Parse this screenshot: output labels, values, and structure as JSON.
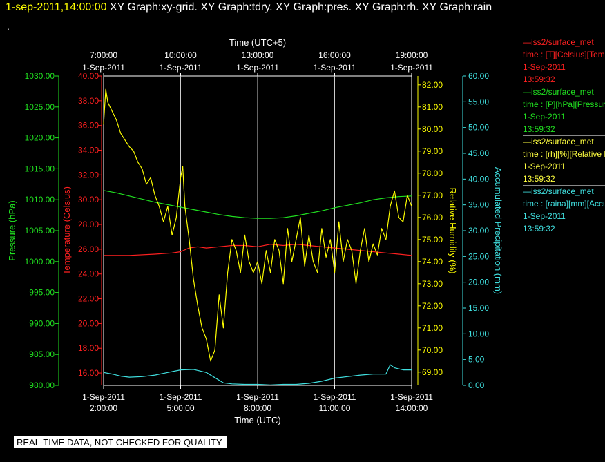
{
  "header": {
    "timestamp": "1-sep-2011,14:00:00",
    "title_rest": "  XY Graph:xy-grid.  XY Graph:tdry.  XY Graph:pres.  XY Graph:rh.  XY Graph:rain",
    "dot": "."
  },
  "footer": {
    "quality_label": "REAL-TIME DATA, NOT CHECKED FOR QUALITY"
  },
  "legend": [
    {
      "line1": "—iss2/surface_met",
      "line2": "time : [T][Celsius][Temperature]",
      "line3": "1-Sep-2011",
      "line4": "13:59:32",
      "color": "#ff2020"
    },
    {
      "line1": "—iss2/surface_met",
      "line2": "time : [P][hPa][Pressure]",
      "line3": "1-Sep-2011",
      "line4": "13:59:32",
      "color": "#20e020"
    },
    {
      "line1": "—iss2/surface_met",
      "line2": "time : [rh][%][Relative Humidity]",
      "line3": "1-Sep-2011",
      "line4": "13:59:32",
      "color": "#ffff40"
    },
    {
      "line1": "—iss2/surface_met",
      "line2": "time : [raina][mm][Accumulated Precipitation]",
      "line3": "1-Sep-2011",
      "line4": "13:59:32",
      "color": "#40e0e0"
    }
  ],
  "chart_data": {
    "type": "line",
    "grid": "vertical lines only",
    "x_top": {
      "title": "Time (UTC+5)",
      "ticks": [
        {
          "time": "7:00:00",
          "date": "1-Sep-2011"
        },
        {
          "time": "10:00:00",
          "date": "1-Sep-2011"
        },
        {
          "time": "13:00:00",
          "date": "1-Sep-2011"
        },
        {
          "time": "16:00:00",
          "date": "1-Sep-2011"
        },
        {
          "time": "19:00:00",
          "date": "1-Sep-2011"
        }
      ]
    },
    "x_bottom": {
      "title": "Time (UTC)",
      "range": [
        "2:00:00",
        "14:00:00"
      ],
      "ticks": [
        {
          "date": "1-Sep-2011",
          "time": "2:00:00"
        },
        {
          "date": "1-Sep-2011",
          "time": "5:00:00"
        },
        {
          "date": "1-Sep-2011",
          "time": "8:00:00"
        },
        {
          "date": "1-Sep-2011",
          "time": "11:00:00"
        },
        {
          "date": "1-Sep-2011",
          "time": "14:00:00"
        }
      ]
    },
    "axes": {
      "pressure": {
        "label": "Pressure (hPa)",
        "color": "#20e020",
        "range": [
          980,
          1030
        ],
        "ticks": [
          "980.00",
          "985.00",
          "990.00",
          "995.00",
          "1000.00",
          "1005.00",
          "1010.00",
          "1015.00",
          "1020.00",
          "1025.00",
          "1030.00"
        ]
      },
      "temperature": {
        "label": "Temperature (Celsius)",
        "color": "#ff2020",
        "range": [
          15,
          40
        ],
        "ticks": [
          "16.00",
          "18.00",
          "20.00",
          "22.00",
          "24.00",
          "26.00",
          "28.00",
          "30.00",
          "32.00",
          "34.00",
          "36.00",
          "38.00",
          "40.00"
        ]
      },
      "humidity": {
        "label": "Relative Humidity (%)",
        "color": "#ffff00",
        "range": [
          68.4,
          82.4
        ],
        "ticks": [
          "69.00",
          "70.00",
          "71.00",
          "72.00",
          "73.00",
          "74.00",
          "75.00",
          "76.00",
          "77.00",
          "78.00",
          "79.00",
          "80.00",
          "81.00",
          "82.00"
        ]
      },
      "rain": {
        "label": "Accumulated Precipitation (mm)",
        "color": "#40e0e0",
        "range": [
          0,
          60
        ],
        "ticks": [
          "0.00",
          "5.00",
          "10.00",
          "15.00",
          "20.00",
          "25.00",
          "30.00",
          "35.00",
          "40.00",
          "45.00",
          "50.00",
          "55.00",
          "60.00"
        ]
      }
    },
    "series": [
      {
        "axis": "pressure",
        "color": "#20e020",
        "x": [
          "2:00",
          "2:30",
          "3:00",
          "3:30",
          "4:00",
          "4:30",
          "5:00",
          "5:30",
          "6:00",
          "6:30",
          "7:00",
          "7:30",
          "8:00",
          "8:30",
          "9:00",
          "9:30",
          "10:00",
          "10:30",
          "11:00",
          "11:30",
          "12:00",
          "12:30",
          "13:00",
          "13:30",
          "14:00"
        ],
        "values": [
          1011.5,
          1011.1,
          1010.6,
          1010.1,
          1009.6,
          1009.2,
          1008.8,
          1008.4,
          1008.0,
          1007.6,
          1007.3,
          1007.1,
          1007.0,
          1007.0,
          1007.1,
          1007.4,
          1007.8,
          1008.2,
          1008.7,
          1009.1,
          1009.5,
          1010.0,
          1010.3,
          1010.5,
          1010.6
        ]
      },
      {
        "axis": "temperature",
        "color": "#ff2020",
        "x": [
          "2:00",
          "3:00",
          "4:00",
          "4:40",
          "5:00",
          "5:20",
          "5:40",
          "6:00",
          "6:30",
          "7:00",
          "7:30",
          "8:00",
          "8:30",
          "9:00",
          "9:30",
          "10:00",
          "10:30",
          "11:00",
          "11:30",
          "12:00",
          "12:30",
          "13:00",
          "13:30",
          "14:00"
        ],
        "values": [
          25.5,
          25.5,
          25.6,
          25.7,
          25.8,
          26.1,
          26.2,
          26.1,
          26.2,
          26.3,
          26.3,
          26.2,
          26.4,
          26.3,
          26.4,
          26.3,
          26.2,
          26.1,
          26.0,
          25.9,
          25.8,
          25.7,
          25.6,
          25.5
        ]
      },
      {
        "axis": "humidity",
        "color": "#ffff00",
        "x": [
          "2:00",
          "2:05",
          "2:10",
          "2:20",
          "2:30",
          "2:40",
          "2:50",
          "3:00",
          "3:10",
          "3:20",
          "3:30",
          "3:40",
          "3:50",
          "4:00",
          "4:10",
          "4:20",
          "4:30",
          "4:40",
          "4:50",
          "5:00",
          "5:05",
          "5:10",
          "5:20",
          "5:30",
          "5:40",
          "5:50",
          "6:00",
          "6:10",
          "6:20",
          "6:30",
          "6:40",
          "6:50",
          "7:00",
          "7:10",
          "7:20",
          "7:30",
          "7:40",
          "7:50",
          "8:00",
          "8:10",
          "8:20",
          "8:30",
          "8:40",
          "8:50",
          "9:00",
          "9:10",
          "9:20",
          "9:30",
          "9:40",
          "9:50",
          "10:00",
          "10:10",
          "10:20",
          "10:30",
          "10:40",
          "10:50",
          "11:00",
          "11:10",
          "11:20",
          "11:30",
          "11:40",
          "11:50",
          "12:00",
          "12:10",
          "12:20",
          "12:30",
          "12:40",
          "12:50",
          "13:00",
          "13:10",
          "13:20",
          "13:30",
          "13:40",
          "13:50",
          "14:00"
        ],
        "values": [
          80.2,
          81.8,
          81.2,
          80.8,
          80.4,
          79.8,
          79.5,
          79.2,
          79.0,
          78.5,
          78.2,
          77.5,
          77.8,
          77.0,
          76.5,
          75.8,
          76.5,
          75.2,
          76.0,
          77.8,
          78.3,
          76.5,
          75.0,
          73.2,
          72.0,
          71.0,
          70.5,
          69.5,
          70.0,
          72.5,
          71.0,
          73.5,
          75.0,
          74.5,
          73.5,
          75.2,
          74.0,
          73.5,
          74.0,
          73.0,
          74.5,
          73.5,
          75.0,
          74.5,
          73.0,
          75.5,
          74.0,
          75.0,
          76.0,
          73.8,
          75.2,
          74.0,
          73.5,
          75.5,
          74.2,
          75.0,
          73.5,
          75.8,
          74.0,
          75.0,
          74.5,
          73.0,
          74.5,
          75.5,
          74.0,
          74.8,
          74.3,
          75.5,
          75.0,
          76.5,
          77.2,
          76.0,
          75.8,
          77.0,
          76.5
        ]
      },
      {
        "axis": "rain",
        "color": "#40e0e0",
        "x": [
          "2:00",
          "2:20",
          "2:40",
          "3:00",
          "3:30",
          "4:00",
          "4:30",
          "5:00",
          "5:30",
          "6:00",
          "6:20",
          "6:40",
          "7:00",
          "7:30",
          "8:00",
          "8:30",
          "9:00",
          "9:30",
          "10:00",
          "10:30",
          "11:00",
          "11:30",
          "12:00",
          "12:30",
          "13:00",
          "13:10",
          "13:20",
          "13:40",
          "14:00"
        ],
        "values": [
          2.5,
          2.2,
          1.8,
          1.6,
          1.7,
          2.0,
          2.5,
          3.0,
          3.1,
          2.5,
          1.5,
          0.5,
          0.3,
          0.2,
          0.2,
          0.1,
          0.2,
          0.2,
          0.4,
          0.8,
          1.4,
          1.7,
          2.0,
          2.2,
          2.2,
          4.0,
          3.4,
          3.0,
          3.0
        ]
      }
    ]
  }
}
